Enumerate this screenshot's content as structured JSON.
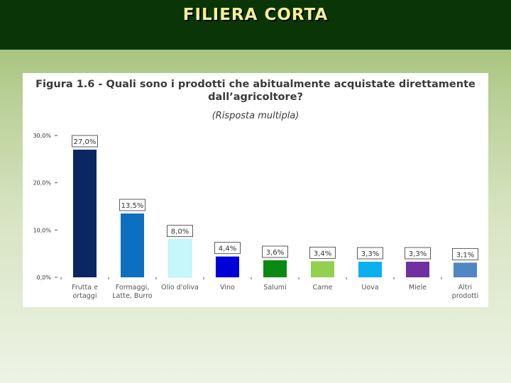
{
  "slide": {
    "title": "FILIERA CORTA"
  },
  "figure": {
    "title_line1": "Figura 1.6 - Quali sono i prodotti che abitualmente acquistate direttamente",
    "title_line2": "dall’agricoltore?",
    "subtitle": "(Risposta multipla)"
  },
  "chart_data": {
    "type": "bar",
    "ylim": [
      0,
      30
    ],
    "yticks": [
      0,
      10,
      20,
      30
    ],
    "ytick_labels": [
      "0,0%",
      "10,0%",
      "20,0%",
      "30,0%"
    ],
    "categories": [
      [
        "Frutta e",
        "ortaggi"
      ],
      [
        "Formaggi,",
        "Latte, Burro"
      ],
      [
        "Olio d'oliva"
      ],
      [
        "Vino"
      ],
      [
        "Salumi"
      ],
      [
        "Carne"
      ],
      [
        "Uova"
      ],
      [
        "Miele"
      ],
      [
        "Altri",
        "prodotti"
      ]
    ],
    "values": [
      27.0,
      13.5,
      8.0,
      4.4,
      3.6,
      3.4,
      3.3,
      3.3,
      3.1
    ],
    "data_labels": [
      "27,0%",
      "13,5%",
      "8,0%",
      "4,4%",
      "3,6%",
      "3,4%",
      "3,3%",
      "3,3%",
      "3,1%"
    ],
    "colors": [
      "#0b2763",
      "#0d6fbf",
      "#c8f7fb",
      "#0000d8",
      "#0b8a12",
      "#92d050",
      "#0ab0f0",
      "#7030a0",
      "#4f86c6"
    ],
    "grid": false,
    "legend": "none"
  }
}
